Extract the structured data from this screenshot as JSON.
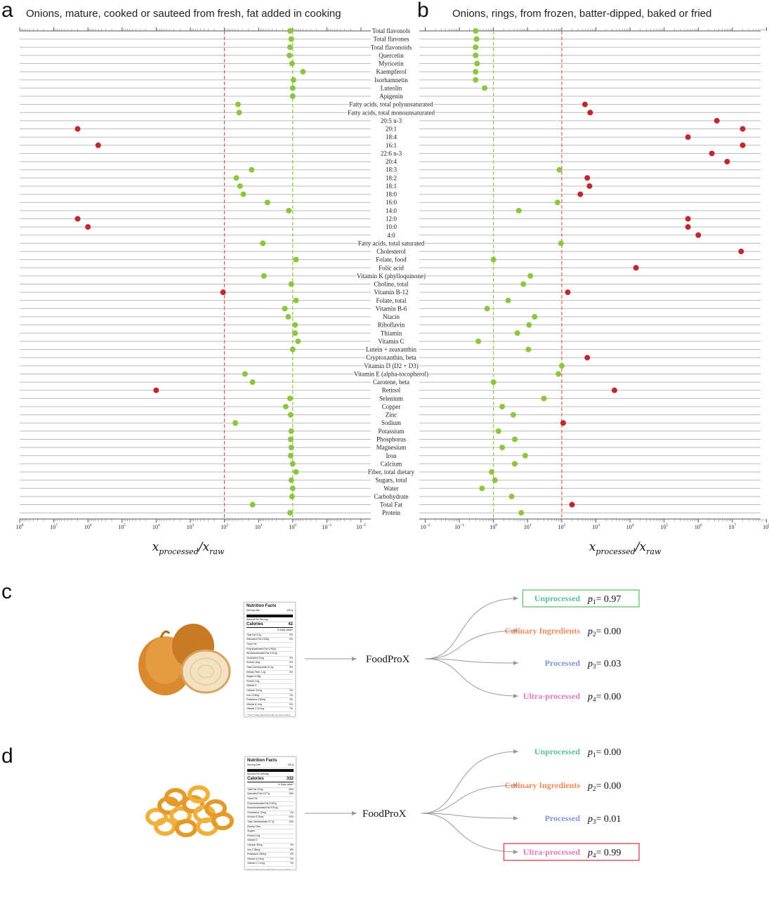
{
  "panels": {
    "a": {
      "letter": "a",
      "title": "Onions, mature, cooked or sauteed from fresh, fat added in cooking"
    },
    "b": {
      "letter": "b",
      "title": "Onions, rings, from frozen, batter-dipped, baked or fried"
    },
    "c": {
      "letter": "c"
    },
    "d": {
      "letter": "d"
    }
  },
  "chart_data": [
    {
      "type": "scatter",
      "panel": "a",
      "title": "Onions, mature, cooked or sauteed from fresh, fat added in cooking",
      "xlabel": "x_processed / x_raw",
      "xscale": "log",
      "x_reversed": true,
      "xlim": [
        100000000,
        0.01
      ],
      "xticks": [
        "10^8",
        "10^7",
        "10^6",
        "10^5",
        "10^4",
        "10^3",
        "10^2",
        "10^1",
        "10^0",
        "10^-1",
        "10^-2"
      ],
      "reference_lines": [
        100,
        1
      ],
      "nutrients": [
        "Total flavonols",
        "Total flavones",
        "Total flavonoids",
        "Quercetin",
        "Myricetin",
        "Kaempferol",
        "Isorhamnetin",
        "Luteolin",
        "Apigenin",
        "Fatty acids, total polyunsaturated",
        "Fatty acids, total monounsaturated",
        "20:5 n-3",
        "20:1",
        "18:4",
        "16:1",
        "22:6 n-3",
        "20:4",
        "18:3",
        "18:2",
        "18:1",
        "18:0",
        "16:0",
        "14:0",
        "12:0",
        "10:0",
        "4:0",
        "Fatty acids, total saturated",
        "Cholesterol",
        "Folate, food",
        "Folic acid",
        "Vitamin K (phylloquinone)",
        "Choline, total",
        "Vitamin B-12",
        "Folate, total",
        "Vitamin B-6",
        "Niacin",
        "Riboflavin",
        "Thiamin",
        "Vitamin C",
        "Lutein + zeaxanthin",
        "Cryptoxanthin, beta",
        "Vitamin D (D2 + D3)",
        "Vitamin E (alpha-tocopherol)",
        "Carotene, beta",
        "Retinol",
        "Selenium",
        "Copper",
        "Zinc",
        "Sodium",
        "Potassium",
        "Phosphorus",
        "Magnesium",
        "Iron",
        "Calcium",
        "Fiber, total dietary",
        "Sugars, total",
        "Water",
        "Carbohydrate",
        "Total Fat",
        "Protein"
      ],
      "points": [
        {
          "label": "Total flavonols",
          "x": 1.2,
          "outlier": false
        },
        {
          "label": "Total flavones",
          "x": 1.1,
          "outlier": false
        },
        {
          "label": "Total flavonoids",
          "x": 1.2,
          "outlier": false
        },
        {
          "label": "Quercetin",
          "x": 1.25,
          "outlier": false
        },
        {
          "label": "Myricetin",
          "x": 1.05,
          "outlier": false
        },
        {
          "label": "Kaempferol",
          "x": 0.5,
          "outlier": false
        },
        {
          "label": "Isorhamnetin",
          "x": 0.95,
          "outlier": false
        },
        {
          "label": "Luteolin",
          "x": 1.0,
          "outlier": false
        },
        {
          "label": "Apigenin",
          "x": 1.0,
          "outlier": false
        },
        {
          "label": "Fatty acids, total polyunsaturated",
          "x": 40,
          "outlier": false
        },
        {
          "label": "Fatty acids, total monounsaturated",
          "x": 37,
          "outlier": false
        },
        {
          "label": "20:1",
          "x": 2000000,
          "outlier": true
        },
        {
          "label": "16:1",
          "x": 500000,
          "outlier": true
        },
        {
          "label": "18:3",
          "x": 16,
          "outlier": false
        },
        {
          "label": "18:2",
          "x": 45,
          "outlier": false
        },
        {
          "label": "18:1",
          "x": 35,
          "outlier": false
        },
        {
          "label": "18:0",
          "x": 28,
          "outlier": false
        },
        {
          "label": "16:0",
          "x": 5.5,
          "outlier": false
        },
        {
          "label": "14:0",
          "x": 1.3,
          "outlier": false
        },
        {
          "label": "12:0",
          "x": 2000000,
          "outlier": true
        },
        {
          "label": "10:0",
          "x": 1000000,
          "outlier": true
        },
        {
          "label": "Fatty acids, total saturated",
          "x": 7.5,
          "outlier": false
        },
        {
          "label": "Folate, food",
          "x": 0.8,
          "outlier": false
        },
        {
          "label": "Vitamin K (phylloquinone)",
          "x": 7,
          "outlier": false
        },
        {
          "label": "Choline, total",
          "x": 1.1,
          "outlier": false
        },
        {
          "label": "Vitamin B-12",
          "x": 110,
          "outlier": true
        },
        {
          "label": "Folate, total",
          "x": 0.8,
          "outlier": false
        },
        {
          "label": "Vitamin B-6",
          "x": 1.7,
          "outlier": false
        },
        {
          "label": "Niacin",
          "x": 1.35,
          "outlier": false
        },
        {
          "label": "Riboflavin",
          "x": 0.85,
          "outlier": false
        },
        {
          "label": "Thiamin",
          "x": 0.85,
          "outlier": false
        },
        {
          "label": "Vitamin C",
          "x": 0.7,
          "outlier": false
        },
        {
          "label": "Lutein + zeaxanthin",
          "x": 1.0,
          "outlier": false
        },
        {
          "label": "Vitamin E (alpha-tocopherol)",
          "x": 25,
          "outlier": false
        },
        {
          "label": "Carotene, beta",
          "x": 15,
          "outlier": false
        },
        {
          "label": "Retinol",
          "x": 10000,
          "outlier": true
        },
        {
          "label": "Selenium",
          "x": 1.2,
          "outlier": false
        },
        {
          "label": "Copper",
          "x": 1.6,
          "outlier": false
        },
        {
          "label": "Zinc",
          "x": 1.15,
          "outlier": false
        },
        {
          "label": "Sodium",
          "x": 48,
          "outlier": false
        },
        {
          "label": "Potassium",
          "x": 1.1,
          "outlier": false
        },
        {
          "label": "Phosphorus",
          "x": 1.15,
          "outlier": false
        },
        {
          "label": "Magnesium",
          "x": 1.1,
          "outlier": false
        },
        {
          "label": "Iron",
          "x": 1.15,
          "outlier": false
        },
        {
          "label": "Calcium",
          "x": 1.0,
          "outlier": false
        },
        {
          "label": "Fiber, total dietary",
          "x": 0.8,
          "outlier": false
        },
        {
          "label": "Sugars, total",
          "x": 1.1,
          "outlier": false
        },
        {
          "label": "Water",
          "x": 1.0,
          "outlier": false
        },
        {
          "label": "Carbohydrate",
          "x": 1.05,
          "outlier": false
        },
        {
          "label": "Total Fat",
          "x": 15,
          "outlier": false
        },
        {
          "label": "Protein",
          "x": 1.2,
          "outlier": false
        }
      ]
    },
    {
      "type": "scatter",
      "panel": "b",
      "title": "Onions, rings, from frozen, batter-dipped, baked or fried",
      "xlabel": "x_processed / x_raw",
      "xscale": "log",
      "x_reversed": false,
      "xlim": [
        0.01,
        100000000
      ],
      "xticks": [
        "10^-2",
        "10^-1",
        "10^0",
        "10^1",
        "10^2",
        "10^3",
        "10^4",
        "10^5",
        "10^6",
        "10^7",
        "10^8"
      ],
      "reference_lines": [
        1,
        100
      ],
      "points": [
        {
          "label": "Total flavonols",
          "x": 0.3,
          "outlier": false
        },
        {
          "label": "Total flavones",
          "x": 0.32,
          "outlier": false
        },
        {
          "label": "Total flavonoids",
          "x": 0.3,
          "outlier": false
        },
        {
          "label": "Quercetin",
          "x": 0.3,
          "outlier": false
        },
        {
          "label": "Myricetin",
          "x": 0.33,
          "outlier": false
        },
        {
          "label": "Kaempferol",
          "x": 0.3,
          "outlier": false
        },
        {
          "label": "Isorhamnetin",
          "x": 0.3,
          "outlier": false
        },
        {
          "label": "Luteolin",
          "x": 0.55,
          "outlier": false
        },
        {
          "label": "Fatty acids, total polyunsaturated",
          "x": 480,
          "outlier": true
        },
        {
          "label": "Fatty acids, total monounsaturated",
          "x": 680,
          "outlier": true
        },
        {
          "label": "20:5 n-3",
          "x": 3500000,
          "outlier": true
        },
        {
          "label": "20:1",
          "x": 20000000,
          "outlier": true
        },
        {
          "label": "18:4",
          "x": 500000,
          "outlier": true
        },
        {
          "label": "16:1",
          "x": 20000000,
          "outlier": true
        },
        {
          "label": "22:6 n-3",
          "x": 2500000,
          "outlier": true
        },
        {
          "label": "20:4",
          "x": 7000000,
          "outlier": true
        },
        {
          "label": "18:3",
          "x": 85,
          "outlier": false
        },
        {
          "label": "18:2",
          "x": 560,
          "outlier": true
        },
        {
          "label": "18:1",
          "x": 650,
          "outlier": true
        },
        {
          "label": "18:0",
          "x": 350,
          "outlier": true
        },
        {
          "label": "16:0",
          "x": 75,
          "outlier": false
        },
        {
          "label": "14:0",
          "x": 5.5,
          "outlier": false
        },
        {
          "label": "12:0",
          "x": 500000,
          "outlier": true
        },
        {
          "label": "10:0",
          "x": 500000,
          "outlier": true
        },
        {
          "label": "4:0",
          "x": 1000000,
          "outlier": true
        },
        {
          "label": "Fatty acids, total saturated",
          "x": 95,
          "outlier": false
        },
        {
          "label": "Cholesterol",
          "x": 18000000,
          "outlier": true
        },
        {
          "label": "Folate, food",
          "x": 1.0,
          "outlier": false
        },
        {
          "label": "Folic acid",
          "x": 15000,
          "outlier": true
        },
        {
          "label": "Vitamin K (phylloquinone)",
          "x": 12,
          "outlier": false
        },
        {
          "label": "Choline, total",
          "x": 7.5,
          "outlier": false
        },
        {
          "label": "Vitamin B-12",
          "x": 150,
          "outlier": true
        },
        {
          "label": "Folate, total",
          "x": 2.7,
          "outlier": false
        },
        {
          "label": "Vitamin B-6",
          "x": 0.65,
          "outlier": false
        },
        {
          "label": "Niacin",
          "x": 16,
          "outlier": false
        },
        {
          "label": "Riboflavin",
          "x": 11,
          "outlier": false
        },
        {
          "label": "Thiamin",
          "x": 5,
          "outlier": false
        },
        {
          "label": "Vitamin C",
          "x": 0.36,
          "outlier": false
        },
        {
          "label": "Lutein + zeaxanthin",
          "x": 10.5,
          "outlier": false
        },
        {
          "label": "Cryptoxanthin, beta",
          "x": 560,
          "outlier": true
        },
        {
          "label": "Vitamin D (D2 + D3)",
          "x": 100,
          "outlier": false
        },
        {
          "label": "Vitamin E (alpha-tocopherol)",
          "x": 80,
          "outlier": false
        },
        {
          "label": "Carotene, beta",
          "x": 1.0,
          "outlier": false
        },
        {
          "label": "Retinol",
          "x": 3500,
          "outlier": true
        },
        {
          "label": "Selenium",
          "x": 30,
          "outlier": false
        },
        {
          "label": "Copper",
          "x": 1.8,
          "outlier": false
        },
        {
          "label": "Zinc",
          "x": 3.8,
          "outlier": false
        },
        {
          "label": "Sodium",
          "x": 110,
          "outlier": true
        },
        {
          "label": "Potassium",
          "x": 1.4,
          "outlier": false
        },
        {
          "label": "Phosphorus",
          "x": 4.2,
          "outlier": false
        },
        {
          "label": "Magnesium",
          "x": 1.8,
          "outlier": false
        },
        {
          "label": "Iron",
          "x": 8.5,
          "outlier": false
        },
        {
          "label": "Calcium",
          "x": 4.2,
          "outlier": false
        },
        {
          "label": "Fiber, total dietary",
          "x": 0.88,
          "outlier": false
        },
        {
          "label": "Sugars, total",
          "x": 1.1,
          "outlier": false
        },
        {
          "label": "Water",
          "x": 0.46,
          "outlier": false
        },
        {
          "label": "Carbohydrate",
          "x": 3.4,
          "outlier": false
        },
        {
          "label": "Total Fat",
          "x": 200,
          "outlier": true
        },
        {
          "label": "Protein",
          "x": 6.5,
          "outlier": false
        }
      ]
    }
  ],
  "axis_label_parts": {
    "num": "x",
    "num_sub": "processed",
    "slash": "/",
    "den": "x",
    "den_sub": "raw"
  },
  "colors": {
    "inlier": "#8cc63f",
    "outlier": "#c1272d",
    "ref_red": "#e06050",
    "ref_green": "#8cc63f",
    "gridline": "#bbbbbb"
  },
  "classifier": {
    "model_name": "FoodProX",
    "classes": [
      {
        "name": "Unprocessed",
        "color": "#5bbf9a",
        "p": "p",
        "sub": "1"
      },
      {
        "name": "Culinary Ingredients",
        "color": "#f08a5d",
        "p": "p",
        "sub": "2"
      },
      {
        "name": "Processed",
        "color": "#7f97d6",
        "p": "p",
        "sub": "3"
      },
      {
        "name": "Ultra-processed",
        "color": "#e07bc0",
        "p": "p",
        "sub": "4"
      }
    ],
    "panel_c": {
      "values": [
        "= 0.97",
        "= 0.00",
        "= 0.03",
        "= 0.00"
      ],
      "highlight_index": 0,
      "highlight_color": "#5ab85a"
    },
    "panel_d": {
      "values": [
        "= 0.00",
        "= 0.00",
        "= 0.01",
        "= 0.99"
      ],
      "highlight_index": 3,
      "highlight_color": "#d03040"
    }
  },
  "label_c": {
    "title": "Nutrition Facts",
    "serving_label": "Serving Size",
    "serving_value": "100 g",
    "amount": "Amount Per Serving",
    "calories_label": "Calories",
    "calories_value": "42",
    "dv": "% Daily Value*",
    "rows": [
      [
        "Total Fat  0.2g",
        "0%"
      ],
      [
        "Saturated Fat 0.025g",
        "0%"
      ],
      [
        "Trans Fat",
        ""
      ],
      [
        "Polyunsaturated Fat 0.062g",
        ""
      ],
      [
        "Monounsaturated Fat 0.013g",
        ""
      ],
      [
        "Cholesterol 0mg",
        "0%"
      ],
      [
        "Sodium 4mg",
        "0%"
      ],
      [
        "Total Carbohydrate 10.1g",
        "3%"
      ],
      [
        "Dietary Fiber 1.4g",
        "6%"
      ],
      [
        "Sugars 6.28g",
        ""
      ],
      [
        "Protein 0.9g",
        ""
      ],
      [
        "Vitamin D",
        ""
      ],
      [
        "Calcium 22mg",
        "2%"
      ],
      [
        "Iron 0.19mg",
        "1%"
      ],
      [
        "Potassium 150mg",
        "3%"
      ],
      [
        "Vitamin A 1mg",
        "0%"
      ],
      [
        "Vitamin C 8.1mg",
        "7%"
      ]
    ],
    "footnote": "* The % Daily Value (DV) tells you how much a nutrient in a serving of food contributes to a daily diet. 2,000 calories a day is used for general nutrition advice."
  },
  "label_d": {
    "title": "Nutrition Facts",
    "serving_label": "Serving Size",
    "serving_value": "100 g",
    "amount": "Amount Per Serving",
    "calories_label": "Calories",
    "calories_value": "332",
    "dv": "% Daily Value*",
    "rows": [
      [
        "Total Fat  19.6g",
        "30%"
      ],
      [
        "Saturated Fat 3.377g",
        "15%"
      ],
      [
        "Trans Fat",
        ""
      ],
      [
        "Polyunsaturated Fat 3.967g",
        ""
      ],
      [
        "Monounsaturated Fat 9.514g",
        ""
      ],
      [
        "Cholesterol 12mg",
        "4%"
      ],
      [
        "Sodium 573mg",
        "24%"
      ],
      [
        "Total Carbohydrate 37.7g",
        "13%"
      ],
      [
        "Dietary Fiber",
        ""
      ],
      [
        "Sugars",
        ""
      ],
      [
        "Protein 4.4g",
        ""
      ],
      [
        "Vitamin D",
        ""
      ],
      [
        "Calcium 36mg",
        "3%"
      ],
      [
        "Iron 1.38mg",
        "8%"
      ],
      [
        "Potassium 150mg",
        "3%"
      ],
      [
        "Vitamin A 14mg",
        "2%"
      ],
      [
        "Vitamin C 0.1mg",
        "1%"
      ]
    ],
    "footnote": "* The % Daily Value (DV) tells you how much a nutrient in a serving of food contributes to a daily diet. 2,000 calories a day is used for general nutrition advice."
  }
}
